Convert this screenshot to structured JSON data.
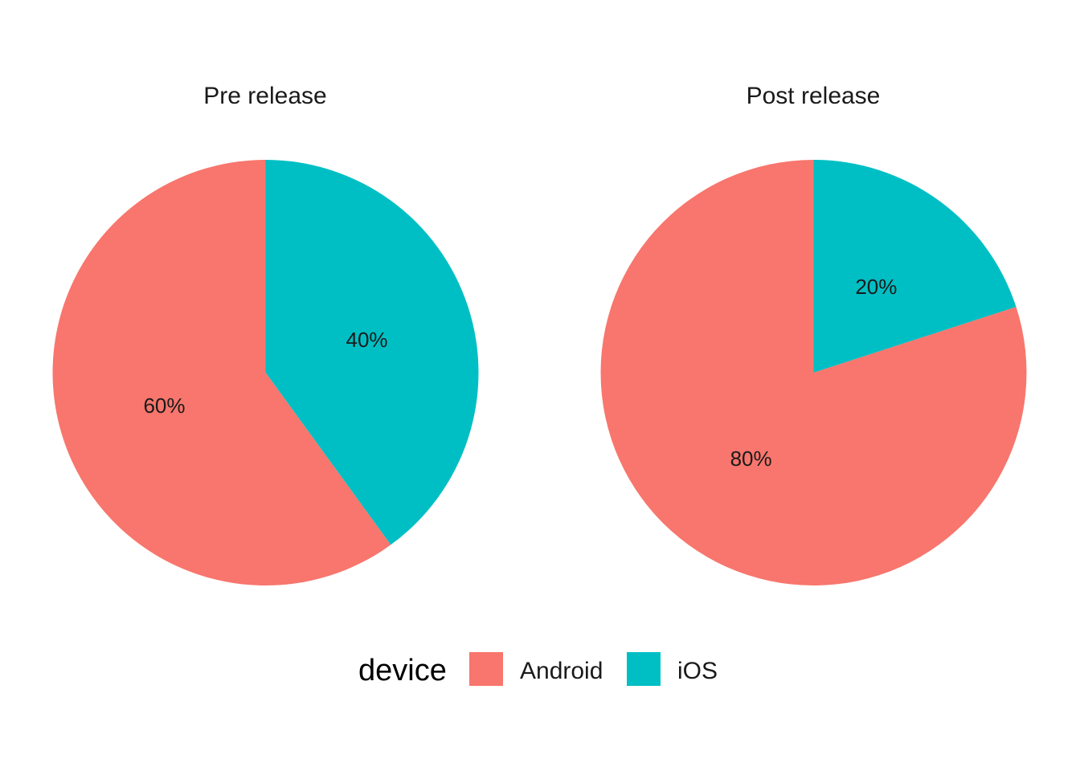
{
  "chart_data": {
    "type": "pie",
    "facets": [
      {
        "title": "Pre release",
        "slices": [
          {
            "category": "Android",
            "value": 60,
            "label": "60%"
          },
          {
            "category": "iOS",
            "value": 40,
            "label": "40%"
          }
        ]
      },
      {
        "title": "Post release",
        "slices": [
          {
            "category": "Android",
            "value": 80,
            "label": "80%"
          },
          {
            "category": "iOS",
            "value": 20,
            "label": "20%"
          }
        ]
      }
    ],
    "legend": {
      "title": "device",
      "position": "bottom",
      "entries": [
        {
          "name": "Android",
          "color": "#F8766D"
        },
        {
          "name": "iOS",
          "color": "#00BFC4"
        }
      ]
    }
  }
}
